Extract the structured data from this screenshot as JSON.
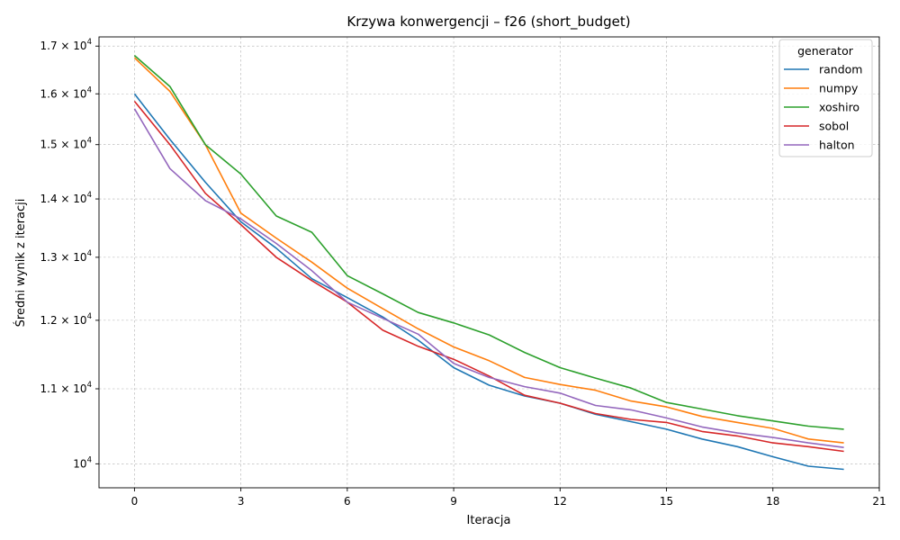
{
  "chart_data": {
    "type": "line",
    "title": "Krzywa konwergencji – f26 (short_budget)",
    "xlabel": "Iteracja",
    "ylabel": "Średni wynik z iteracji",
    "yscale": "log",
    "xlim": [
      -1,
      21
    ],
    "ylim": [
      9700,
      17200
    ],
    "xticks": [
      0,
      3,
      6,
      9,
      12,
      15,
      18,
      21
    ],
    "yticks": [
      {
        "value": 10000,
        "mantissa": "10",
        "exponent": "4"
      },
      {
        "value": 11000,
        "mantissa": "1.1 × 10",
        "exponent": "4"
      },
      {
        "value": 12000,
        "mantissa": "1.2 × 10",
        "exponent": "4"
      },
      {
        "value": 13000,
        "mantissa": "1.3 × 10",
        "exponent": "4"
      },
      {
        "value": 14000,
        "mantissa": "1.4 × 10",
        "exponent": "4"
      },
      {
        "value": 15000,
        "mantissa": "1.5 × 10",
        "exponent": "4"
      },
      {
        "value": 16000,
        "mantissa": "1.6 × 10",
        "exponent": "4"
      },
      {
        "value": 17000,
        "mantissa": "1.7 × 10",
        "exponent": "4"
      }
    ],
    "grid": true,
    "legend_title": "generator",
    "legend_position": "top-right",
    "x": [
      0,
      1,
      2,
      3,
      4,
      5,
      6,
      7,
      8,
      9,
      10,
      11,
      12,
      13,
      14,
      15,
      16,
      17,
      18,
      19,
      20
    ],
    "series": [
      {
        "name": "random",
        "color": "#1f77b4",
        "values": [
          16000,
          15100,
          14300,
          13600,
          13150,
          12650,
          12350,
          12050,
          11700,
          11300,
          11050,
          10900,
          10800,
          10650,
          10550,
          10450,
          10320,
          10220,
          10090,
          9970,
          9930
        ]
      },
      {
        "name": "numpy",
        "color": "#ff7f0e",
        "values": [
          16750,
          16050,
          15000,
          13750,
          13320,
          12920,
          12500,
          12180,
          11870,
          11600,
          11400,
          11160,
          11060,
          10980,
          10830,
          10750,
          10620,
          10540,
          10460,
          10320,
          10270
        ]
      },
      {
        "name": "xoshiro",
        "color": "#2ca02c",
        "values": [
          16800,
          16150,
          15000,
          14450,
          13700,
          13420,
          12700,
          12410,
          12120,
          11960,
          11780,
          11520,
          11300,
          11150,
          11010,
          10810,
          10720,
          10630,
          10560,
          10490,
          10450
        ]
      },
      {
        "name": "sobol",
        "color": "#d62728",
        "values": [
          15850,
          15000,
          14100,
          13550,
          13000,
          12620,
          12280,
          11850,
          11610,
          11420,
          11180,
          10910,
          10800,
          10660,
          10580,
          10540,
          10420,
          10360,
          10270,
          10220,
          10160
        ]
      },
      {
        "name": "halton",
        "color": "#9467bd",
        "values": [
          15700,
          14550,
          13970,
          13650,
          13230,
          12780,
          12280,
          12030,
          11790,
          11360,
          11160,
          11030,
          10940,
          10770,
          10710,
          10600,
          10480,
          10400,
          10340,
          10270,
          10210
        ]
      }
    ]
  }
}
